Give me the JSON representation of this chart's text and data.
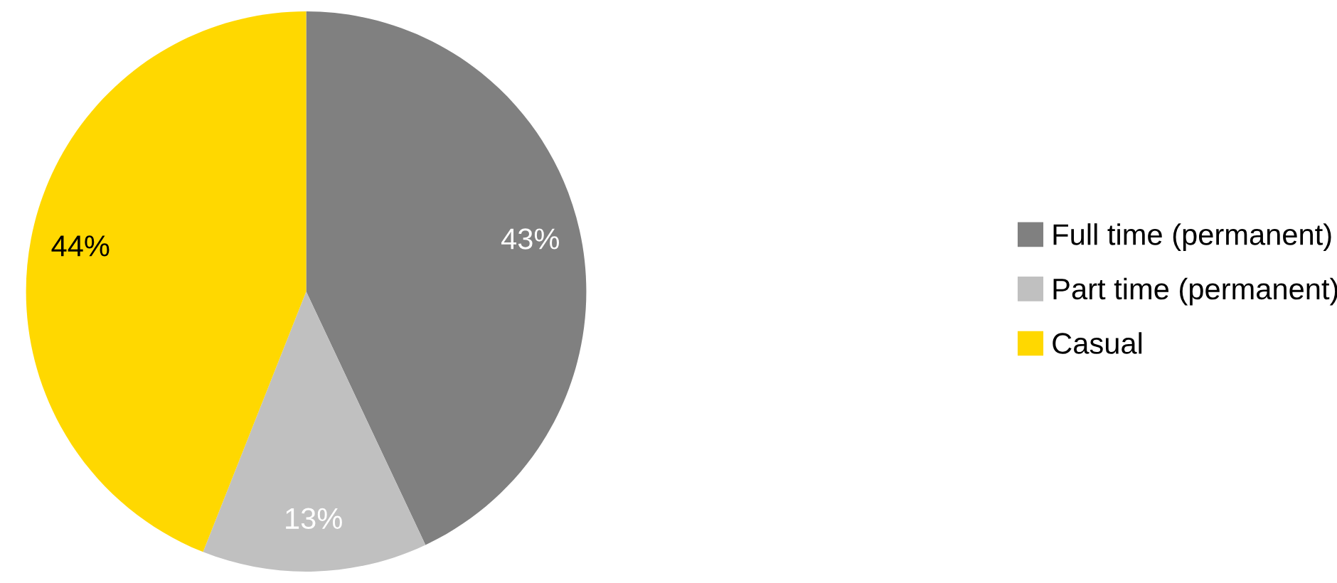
{
  "chart_data": {
    "type": "pie",
    "categories": [
      "Full time (permanent)",
      "Part time (permanent)",
      "Casual"
    ],
    "values": [
      43,
      13,
      44
    ],
    "colors": [
      "#808080",
      "#c0c0c0",
      "#ffd800"
    ],
    "value_labels": [
      "43%",
      "13%",
      "44%"
    ],
    "legend": "right"
  }
}
